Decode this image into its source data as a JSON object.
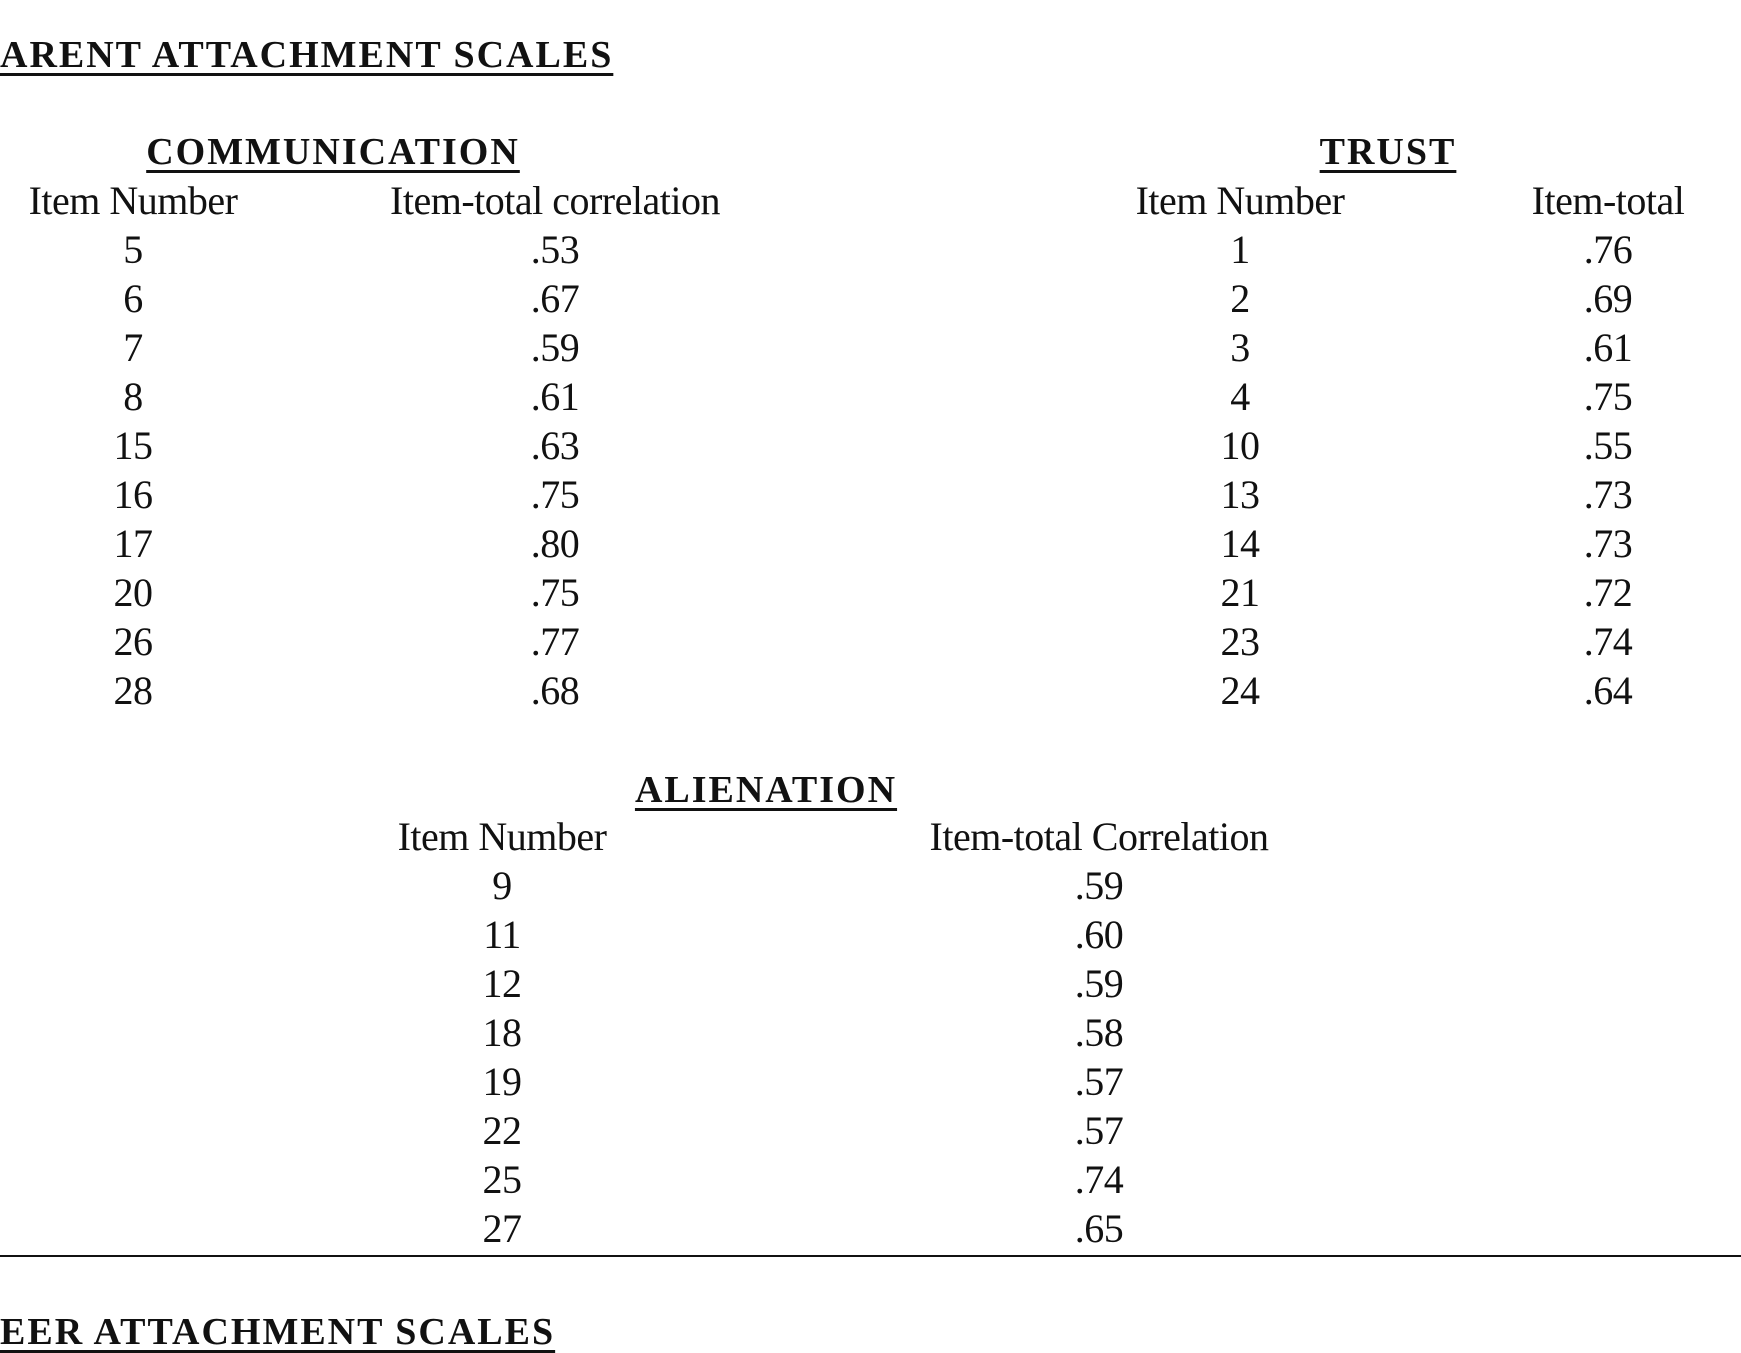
{
  "header": {
    "title": "ARENT ATTACHMENT SCALES"
  },
  "communication": {
    "title": "COMMUNICATION",
    "headers": [
      "Item Number",
      "Item-total correlation"
    ],
    "rows": [
      [
        "5",
        ".53"
      ],
      [
        "6",
        ".67"
      ],
      [
        "7",
        ".59"
      ],
      [
        "8",
        ".61"
      ],
      [
        "15",
        ".63"
      ],
      [
        "16",
        ".75"
      ],
      [
        "17",
        ".80"
      ],
      [
        "20",
        ".75"
      ],
      [
        "26",
        ".77"
      ],
      [
        "28",
        ".68"
      ]
    ]
  },
  "trust": {
    "title": "TRUST",
    "headers": [
      "Item Number",
      "Item-total"
    ],
    "rows": [
      [
        "1",
        ".76"
      ],
      [
        "2",
        ".69"
      ],
      [
        "3",
        ".61"
      ],
      [
        "4",
        ".75"
      ],
      [
        "10",
        ".55"
      ],
      [
        "13",
        ".73"
      ],
      [
        "14",
        ".73"
      ],
      [
        "21",
        ".72"
      ],
      [
        "23",
        ".74"
      ],
      [
        "24",
        ".64"
      ]
    ]
  },
  "alienation": {
    "title": "ALIENATION",
    "headers": [
      "Item Number",
      "Item-total Correlation"
    ],
    "rows": [
      [
        "9",
        ".59"
      ],
      [
        "11",
        ".60"
      ],
      [
        "12",
        ".59"
      ],
      [
        "18",
        ".58"
      ],
      [
        "19",
        ".57"
      ],
      [
        "22",
        ".57"
      ],
      [
        "25",
        ".74"
      ],
      [
        "27",
        ".65"
      ]
    ]
  },
  "footer": {
    "title": "EER ATTACHMENT SCALES"
  }
}
